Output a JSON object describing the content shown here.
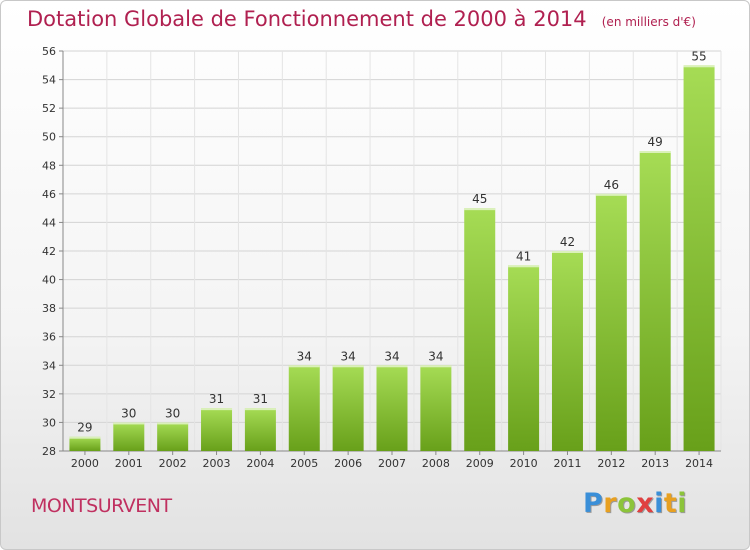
{
  "header": {
    "title": "Dotation Globale de Fonctionnement de 2000 à 2014",
    "subtitle": "(en milliers d'€)"
  },
  "commune": "MONTSURVENT",
  "logo": {
    "letters": [
      "P",
      "r",
      "o",
      "x",
      "i",
      "t",
      "i"
    ]
  },
  "colors": {
    "bar_light": "#a6dc55",
    "bar_dark": "#68a01a",
    "title": "#b02050"
  },
  "chart_data": {
    "type": "bar",
    "title": "Dotation Globale de Fonctionnement de 2000 à 2014",
    "subtitle": "(en milliers d'€)",
    "categories": [
      "2000",
      "2001",
      "2002",
      "2003",
      "2004",
      "2005",
      "2006",
      "2007",
      "2008",
      "2009",
      "2010",
      "2011",
      "2012",
      "2013",
      "2014"
    ],
    "values": [
      29,
      30,
      30,
      31,
      31,
      34,
      34,
      34,
      34,
      45,
      41,
      42,
      46,
      49,
      55
    ],
    "ylim": [
      28,
      56
    ],
    "yticks": [
      28,
      30,
      32,
      34,
      36,
      38,
      40,
      42,
      44,
      46,
      48,
      50,
      52,
      54,
      56
    ],
    "grid": true,
    "legend": "none",
    "xlabel": "",
    "ylabel": ""
  }
}
